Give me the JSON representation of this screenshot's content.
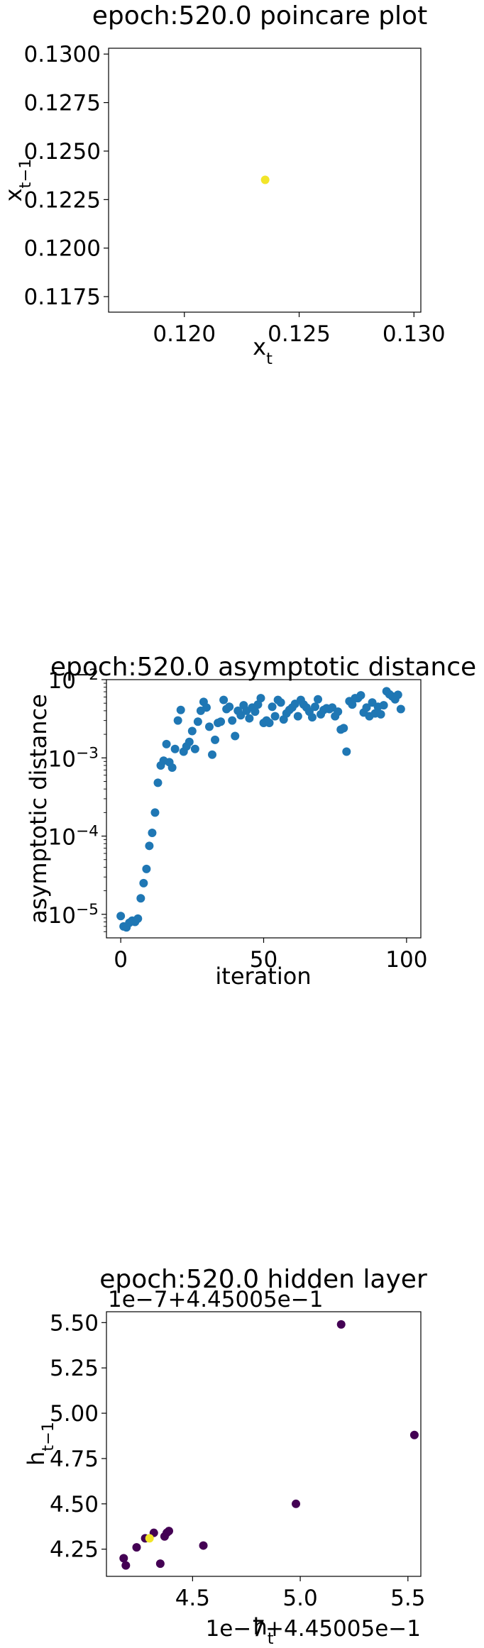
{
  "chart_data": [
    {
      "type": "scatter",
      "title": "epoch:520.0 poincare plot",
      "xlabel": "x_t",
      "ylabel": "x_{t-1}",
      "xlim": [
        0.1167,
        0.1303
      ],
      "ylim": [
        0.1167,
        0.1303
      ],
      "xticks": [
        0.12,
        0.125,
        0.13
      ],
      "xtick_labels": [
        "0.120",
        "0.125",
        "0.130"
      ],
      "yticks": [
        0.1175,
        0.12,
        0.1225,
        0.125,
        0.1275,
        0.13
      ],
      "ytick_labels": [
        "0.1175",
        "0.1200",
        "0.1225",
        "0.1250",
        "0.1275",
        "0.1300"
      ],
      "colors": {
        "point": "#f2e529"
      },
      "points": [
        [
          0.12352,
          0.12352
        ]
      ]
    },
    {
      "type": "scatter",
      "title": "epoch:520.0 asymptotic distance",
      "xlabel": "iteration",
      "ylabel": "asymptotic distance",
      "y_scale": "log",
      "xlim": [
        -5,
        105
      ],
      "ylim": [
        5e-06,
        0.01
      ],
      "xticks": [
        0,
        50,
        100
      ],
      "xtick_labels": [
        "0",
        "50",
        "100"
      ],
      "yticks": [
        1e-05,
        0.0001,
        0.001,
        0.01
      ],
      "ytick_base": "10",
      "ytick_exponents": [
        "−5",
        "−4",
        "−3",
        "−2"
      ],
      "colors": {
        "point": "#1f77b4"
      },
      "y": [
        9.5e-06,
        7e-06,
        6.8e-06,
        7.8e-06,
        8.3e-06,
        8e-06,
        8.8e-06,
        1.6e-05,
        2.5e-05,
        3.8e-05,
        7.5e-05,
        0.00011,
        0.0002,
        0.00048,
        0.0008,
        0.00092,
        0.0015,
        0.00088,
        0.00075,
        0.0013,
        0.003,
        0.0041,
        0.0012,
        0.0014,
        0.0016,
        0.0022,
        0.0013,
        0.0029,
        0.004,
        0.0052,
        0.0044,
        0.0025,
        0.0011,
        0.0017,
        0.0028,
        0.0029,
        0.0055,
        0.0042,
        0.0045,
        0.003,
        0.0019,
        0.004,
        0.0035,
        0.0047,
        0.004,
        0.0032,
        0.0044,
        0.0039,
        0.0048,
        0.0058,
        0.0028,
        0.003,
        0.0028,
        0.0045,
        0.0034,
        0.0055,
        0.0051,
        0.0031,
        0.0037,
        0.0041,
        0.0044,
        0.0049,
        0.0034,
        0.0055,
        0.0048,
        0.0044,
        0.0039,
        0.0033,
        0.0045,
        0.0056,
        0.0036,
        0.0041,
        0.0043,
        0.0042,
        0.0044,
        0.0034,
        0.0039,
        0.0023,
        0.0024,
        0.0012,
        0.0053,
        0.0048,
        0.0058,
        0.0058,
        0.0063,
        0.0038,
        0.0044,
        0.0034,
        0.0051,
        0.0037,
        0.0045,
        0.0036,
        0.0047,
        0.0071,
        0.0065,
        0.0061,
        0.0056,
        0.0064,
        0.0042
      ]
    },
    {
      "type": "scatter",
      "title": "epoch:520.0 hidden layer",
      "xlabel": "h_t",
      "ylabel": "h_{t-1}",
      "xlim": [
        4.1,
        5.56
      ],
      "ylim": [
        4.1,
        5.56
      ],
      "xticks": [
        4.5,
        5.0,
        5.5
      ],
      "xtick_labels": [
        "4.5",
        "5.0",
        "5.5"
      ],
      "yticks": [
        4.25,
        4.5,
        4.75,
        5.0,
        5.25,
        5.5
      ],
      "ytick_labels": [
        "4.25",
        "4.50",
        "4.75",
        "5.00",
        "5.25",
        "5.50"
      ],
      "x_offset_text": "1e−7+4.45005e−1",
      "y_offset_text": "1e−7+4.45005e−1",
      "colors": {
        "dark": "#440154",
        "last": "#f2e529"
      },
      "points": [
        [
          4.18,
          4.2
        ],
        [
          4.19,
          4.16
        ],
        [
          4.24,
          4.26
        ],
        [
          4.35,
          4.17
        ],
        [
          4.28,
          4.31
        ],
        [
          4.32,
          4.34
        ],
        [
          4.38,
          4.34
        ],
        [
          4.39,
          4.35
        ],
        [
          4.37,
          4.32
        ],
        [
          4.55,
          4.27
        ],
        [
          4.98,
          4.5
        ],
        [
          5.19,
          5.49
        ],
        [
          5.53,
          4.88
        ]
      ],
      "last_point": [
        4.3,
        4.31
      ]
    }
  ]
}
